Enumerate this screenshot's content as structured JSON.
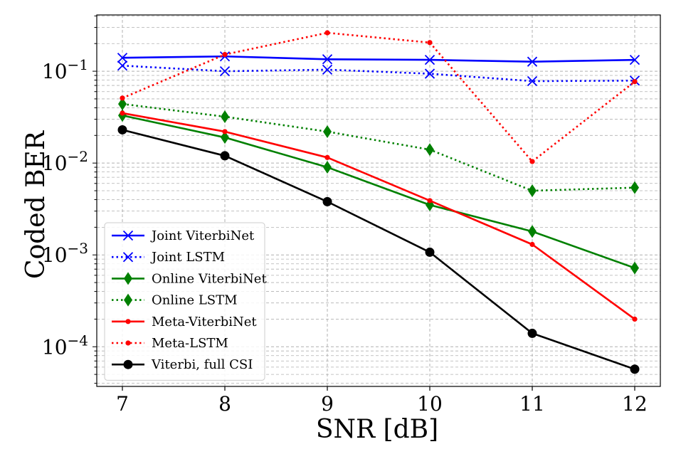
{
  "chart_data": {
    "type": "line",
    "title": "",
    "xlabel": "SNR [dB]",
    "ylabel": "Coded BER",
    "x": [
      7,
      8,
      9,
      10,
      11,
      12
    ],
    "xlim": [
      6.75,
      12.25
    ],
    "ylim": [
      3.7e-05,
      0.41
    ],
    "yscale": "log",
    "grid": true,
    "legend_position": "lower-left",
    "x_tick_labels": [
      "7",
      "8",
      "9",
      "10",
      "11",
      "12"
    ],
    "y_ticks": [
      {
        "base": "10",
        "exp": "−1"
      },
      {
        "base": "10",
        "exp": "−2"
      },
      {
        "base": "10",
        "exp": "−3"
      },
      {
        "base": "10",
        "exp": "−4"
      }
    ],
    "series": [
      {
        "name": "Joint ViterbiNet",
        "color": "#0000ff",
        "dash": "solid",
        "marker": "x",
        "values": [
          0.14,
          0.145,
          0.135,
          0.133,
          0.127,
          0.133
        ]
      },
      {
        "name": "Joint LSTM",
        "color": "#0000ff",
        "dash": "dotted",
        "marker": "x",
        "values": [
          0.115,
          0.1,
          0.104,
          0.094,
          0.078,
          0.079
        ]
      },
      {
        "name": "Online ViterbiNet",
        "color": "#008000",
        "dash": "solid",
        "marker": "diamond",
        "values": [
          0.033,
          0.019,
          0.009,
          0.0035,
          0.0018,
          0.00072
        ]
      },
      {
        "name": "Online LSTM",
        "color": "#008000",
        "dash": "dotted",
        "marker": "diamond",
        "values": [
          0.044,
          0.032,
          0.022,
          0.014,
          0.005,
          0.0054
        ]
      },
      {
        "name": "Meta-ViterbiNet",
        "color": "#ff0000",
        "dash": "solid",
        "marker": "dot",
        "values": [
          0.035,
          0.022,
          0.0115,
          0.0039,
          0.0013,
          0.0002
        ]
      },
      {
        "name": "Meta-LSTM",
        "color": "#ff0000",
        "dash": "dotted",
        "marker": "dot",
        "values": [
          0.051,
          0.152,
          0.262,
          0.205,
          0.0104,
          0.077
        ]
      },
      {
        "name": "Viterbi, full CSI",
        "color": "#000000",
        "dash": "solid",
        "marker": "circle",
        "values": [
          0.023,
          0.012,
          0.0038,
          0.00107,
          0.00014,
          5.7e-05
        ]
      }
    ]
  }
}
